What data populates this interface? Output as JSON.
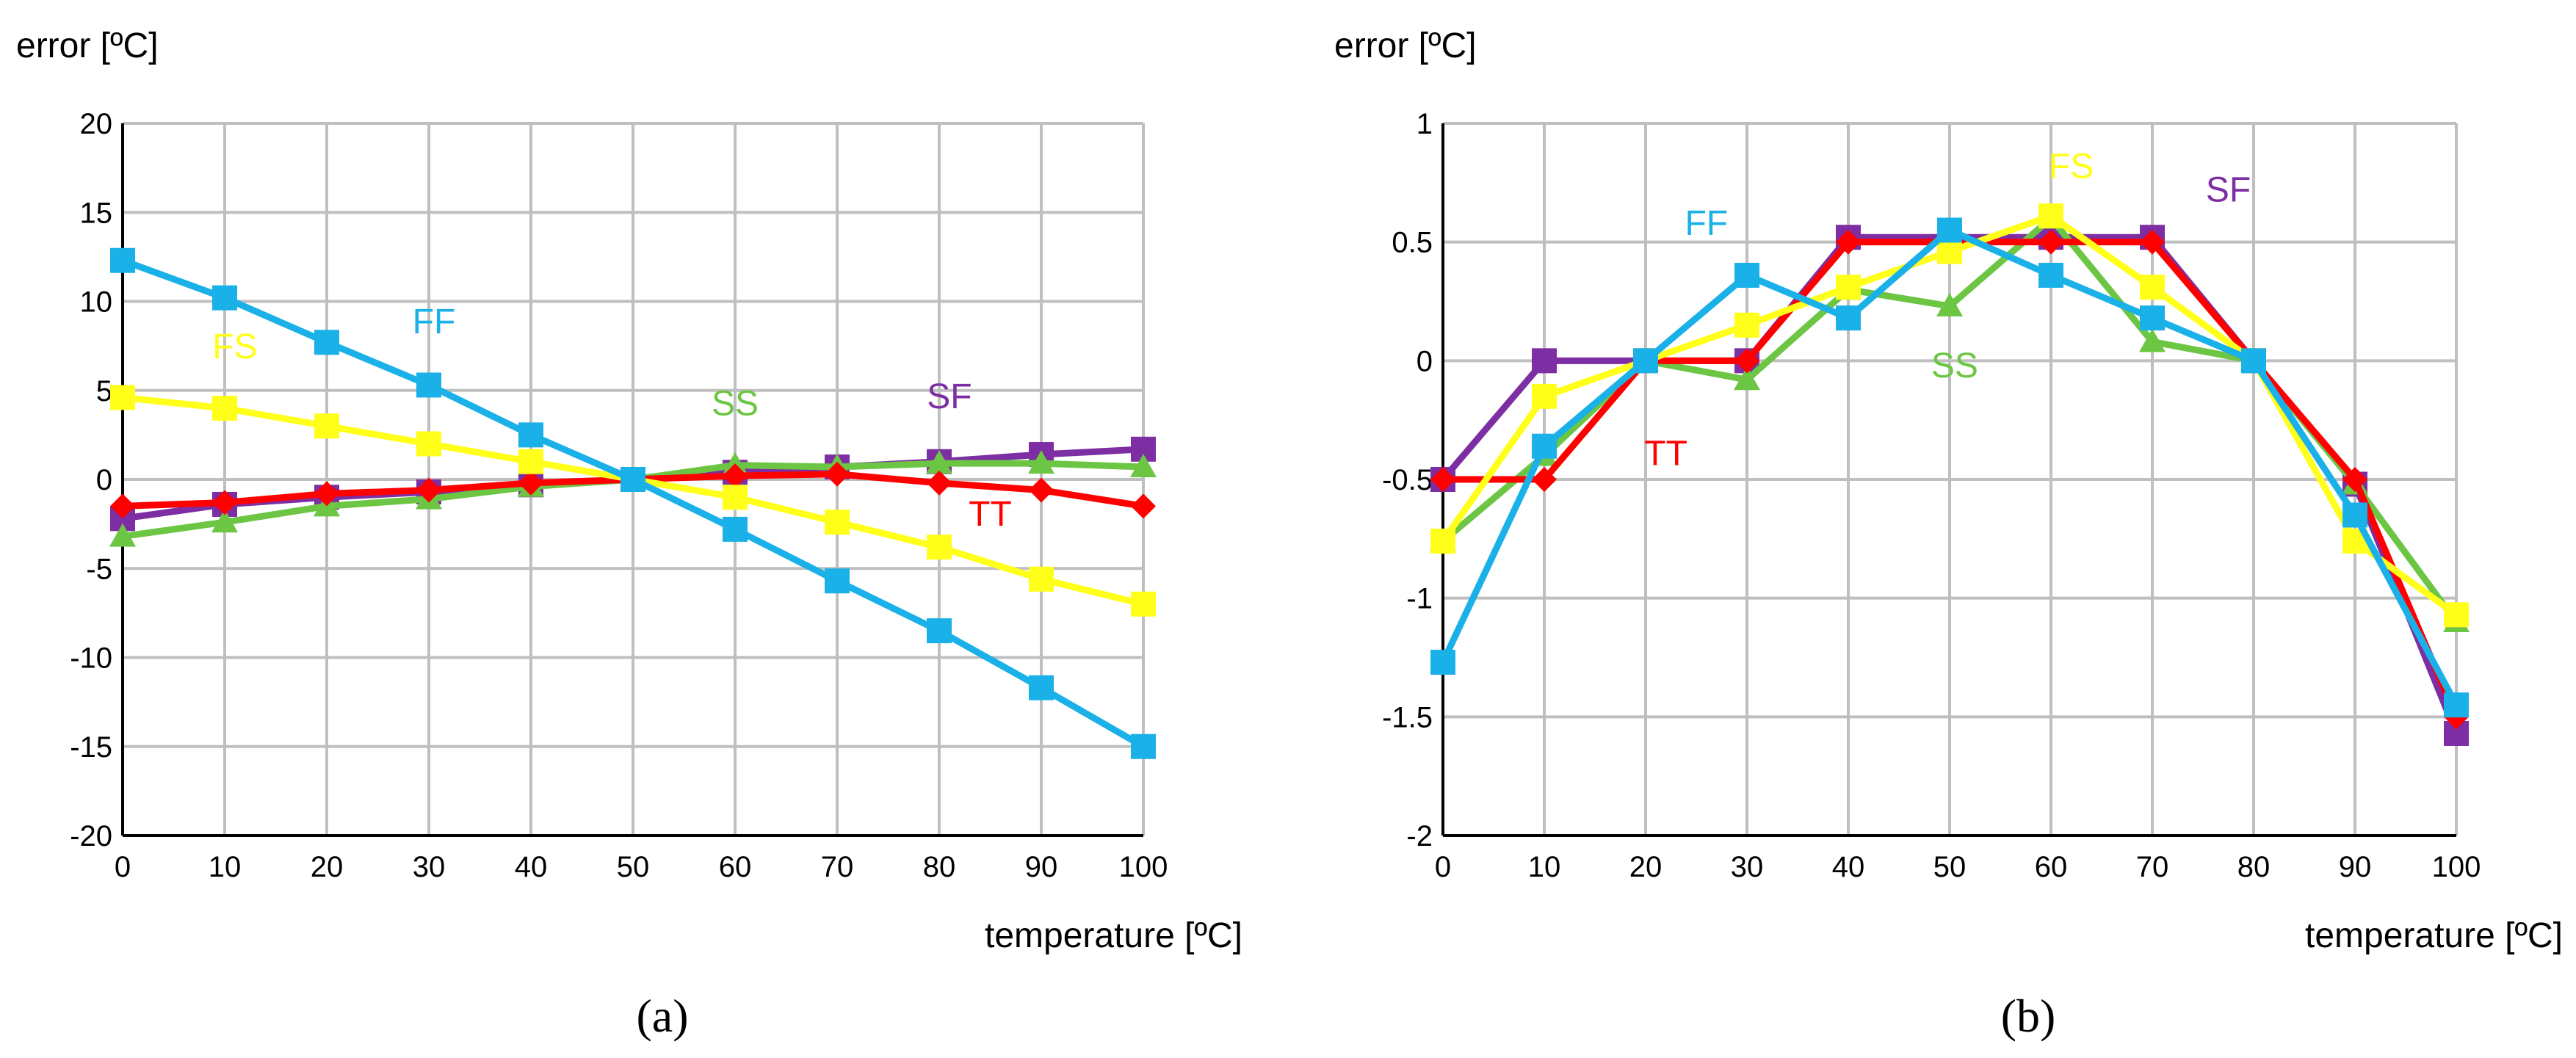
{
  "colors": {
    "FF": "#1ab0e8",
    "FS": "#ffff1a",
    "SS": "#6cc644",
    "TT": "#ff0000",
    "SF": "#7d2ea3",
    "grid": "#bfbfbf",
    "axis": "#000000"
  },
  "chart_data": [
    {
      "type": "line",
      "caption": "(a)",
      "ylabel": "error [ºC]",
      "xlabel": "temperature [ºC]",
      "xlim": [
        0,
        100
      ],
      "ylim": [
        -20,
        20
      ],
      "x_ticks": [
        0,
        10,
        20,
        30,
        40,
        50,
        60,
        70,
        80,
        90,
        100
      ],
      "x_tick_labels": [
        "0",
        "10",
        "20",
        "30",
        "40",
        "50",
        "60",
        "70",
        "80",
        "90",
        "100"
      ],
      "y_ticks": [
        -20,
        -15,
        -10,
        -5,
        0,
        5,
        10,
        15,
        20
      ],
      "y_tick_labels": [
        "-20",
        "-15",
        "-10",
        "-5",
        "0",
        "5",
        "10",
        "15",
        "20"
      ],
      "grid": true,
      "x": [
        0,
        10,
        20,
        30,
        40,
        50,
        60,
        70,
        80,
        90,
        100
      ],
      "series": [
        {
          "name": "TT",
          "marker": "diamond",
          "values": [
            -1.5,
            -1.3,
            -0.8,
            -0.6,
            -0.2,
            0,
            0.2,
            0.3,
            -0.2,
            -0.6,
            -1.5
          ],
          "label": {
            "text": "TT",
            "x": 85,
            "y": -2.6
          }
        },
        {
          "name": "SS",
          "marker": "triangle",
          "values": [
            -3.2,
            -2.4,
            -1.5,
            -1.1,
            -0.4,
            0,
            0.8,
            0.7,
            0.9,
            0.9,
            0.7
          ],
          "label": {
            "text": "SS",
            "x": 60,
            "y": 3.6
          }
        },
        {
          "name": "SF",
          "marker": "square",
          "values": [
            -2.2,
            -1.4,
            -1.0,
            -0.7,
            -0.3,
            0,
            0.4,
            0.7,
            1.0,
            1.4,
            1.7
          ],
          "label": {
            "text": "SF",
            "x": 81,
            "y": 4.0
          }
        },
        {
          "name": "FS",
          "marker": "square",
          "values": [
            4.6,
            4.0,
            3.0,
            2.0,
            1.0,
            0,
            -1.0,
            -2.4,
            -3.8,
            -5.6,
            -7.0
          ],
          "label": {
            "text": "FS",
            "x": 11,
            "y": 6.8
          }
        },
        {
          "name": "FF",
          "marker": "square",
          "values": [
            12.3,
            10.2,
            7.7,
            5.3,
            2.5,
            0,
            -2.8,
            -5.7,
            -8.5,
            -11.7,
            -15.0
          ],
          "label": {
            "text": "FF",
            "x": 30.5,
            "y": 8.2
          }
        }
      ]
    },
    {
      "type": "line",
      "caption": "(b)",
      "ylabel": "error [ºC]",
      "xlabel": "temperature [ºC]",
      "xlim": [
        0,
        100
      ],
      "ylim": [
        -2,
        1
      ],
      "x_ticks": [
        0,
        10,
        20,
        30,
        40,
        50,
        60,
        70,
        80,
        90,
        100
      ],
      "x_tick_labels": [
        "0",
        "10",
        "20",
        "30",
        "40",
        "50",
        "60",
        "70",
        "80",
        "90",
        "100"
      ],
      "y_ticks": [
        -2,
        -1.5,
        -1,
        -0.5,
        0,
        0.5,
        1
      ],
      "y_tick_labels": [
        "-2",
        "-1.5",
        "-1",
        "-0.5",
        "0",
        "0.5",
        "1"
      ],
      "grid": true,
      "x": [
        0,
        10,
        20,
        30,
        40,
        50,
        60,
        70,
        80,
        90,
        100
      ],
      "series": [
        {
          "name": "TT",
          "marker": "diamond",
          "values": [
            -0.5,
            -0.5,
            0,
            0,
            0.5,
            0.5,
            0.5,
            0.5,
            0,
            -0.5,
            -1.5
          ],
          "label": {
            "text": "TT",
            "x": 22,
            "y": -0.44
          }
        },
        {
          "name": "SS",
          "marker": "triangle",
          "values": [
            -0.76,
            -0.4,
            0,
            -0.08,
            0.3,
            0.23,
            0.6,
            0.08,
            0,
            -0.52,
            -1.1
          ],
          "label": {
            "text": "SS",
            "x": 50.5,
            "y": -0.07
          }
        },
        {
          "name": "FF",
          "marker": "square",
          "values": [
            -1.27,
            -0.36,
            0,
            0.36,
            0.18,
            0.55,
            0.36,
            0.18,
            0,
            -0.65,
            -1.45
          ],
          "label": {
            "text": "FF",
            "x": 26,
            "y": 0.53
          }
        },
        {
          "name": "FS",
          "marker": "square",
          "values": [
            -0.76,
            -0.15,
            0,
            0.15,
            0.31,
            0.46,
            0.61,
            0.31,
            0,
            -0.76,
            -1.07
          ],
          "label": {
            "text": "FS",
            "x": 62,
            "y": 0.77
          }
        },
        {
          "name": "SF",
          "marker": "square",
          "values": [
            -0.5,
            0,
            0,
            0,
            0.52,
            0.52,
            0.52,
            0.52,
            0,
            -0.52,
            -1.57
          ],
          "label": {
            "text": "SF",
            "x": 77.5,
            "y": 0.67
          }
        }
      ]
    }
  ]
}
